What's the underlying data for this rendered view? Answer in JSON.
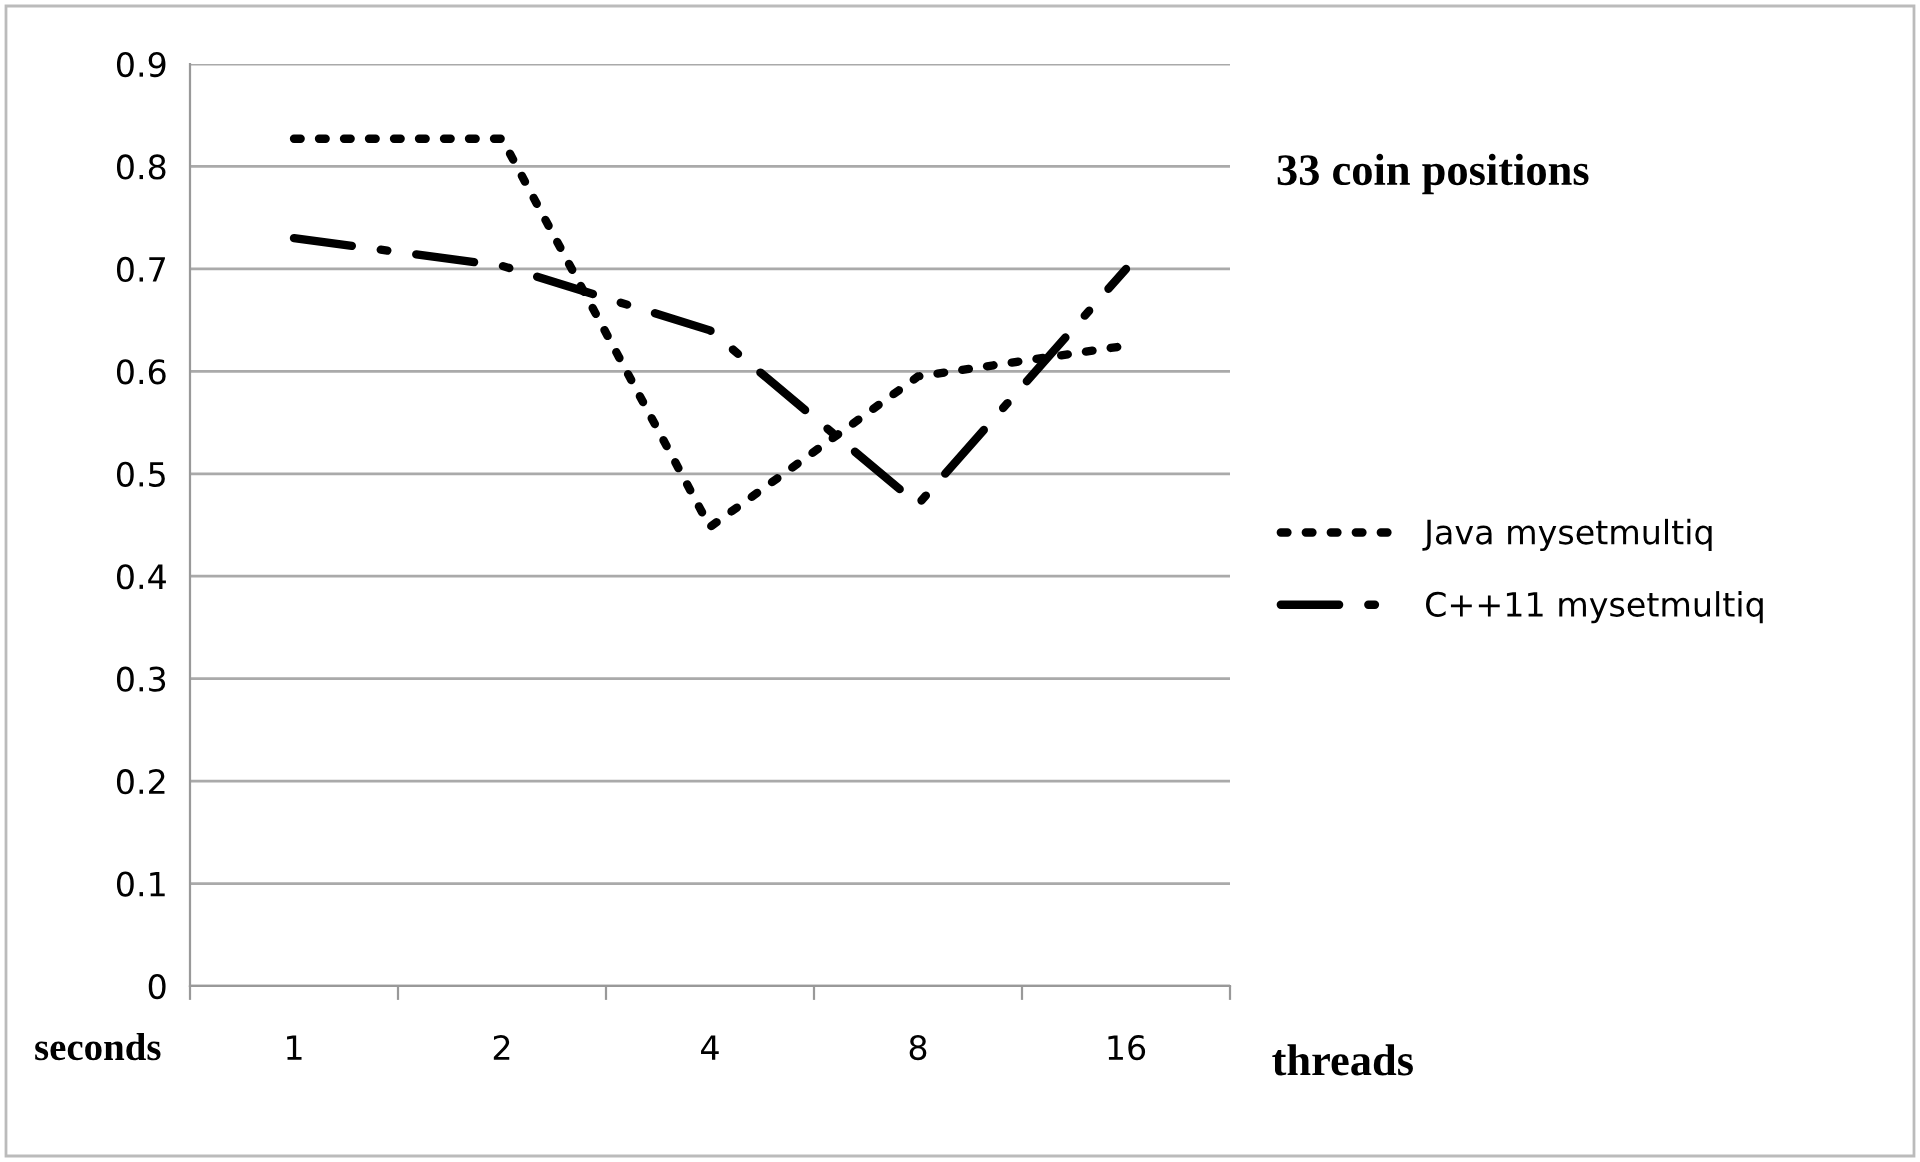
{
  "chart_data": {
    "type": "line",
    "title": "33 coin positions",
    "xlabel": "threads",
    "ylabel": "seconds",
    "categories": [
      "1",
      "2",
      "4",
      "8",
      "16"
    ],
    "series": [
      {
        "name": "Java mysetmultiq",
        "color": "#000000",
        "line_style": "dotted",
        "values": [
          0.827,
          0.827,
          0.448,
          0.595,
          0.625
        ]
      },
      {
        "name": "C++11 mysetmultiq",
        "color": "#000000",
        "line_style": "dashed",
        "values": [
          0.73,
          0.703,
          0.64,
          0.47,
          0.7
        ]
      }
    ],
    "ylim": [
      0,
      0.9
    ],
    "yticks": [
      0,
      0.1,
      0.2,
      0.3,
      0.4,
      0.5,
      0.6,
      0.7,
      0.8,
      0.9
    ],
    "grid": "y",
    "legend": "right",
    "marker": "none"
  }
}
